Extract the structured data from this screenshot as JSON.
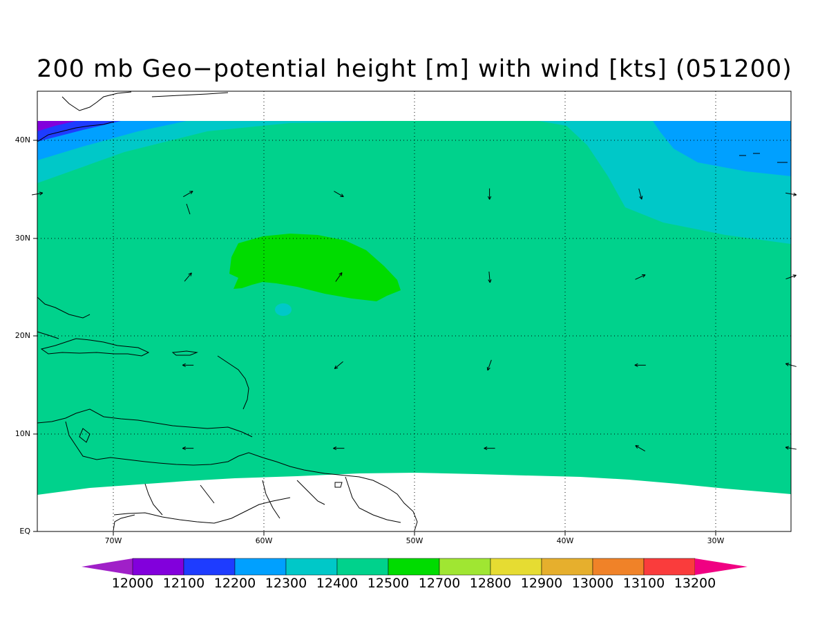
{
  "title": "200 mb Geo−potential height [m] with wind [kts] (051200)",
  "lat_labels": [
    "40N",
    "30N",
    "20N",
    "10N",
    "EQ"
  ],
  "lon_labels": [
    "70W",
    "60W",
    "50W",
    "40W",
    "30W"
  ],
  "colorbar": {
    "labels": [
      "12000",
      "12100",
      "12200",
      "12300",
      "12400",
      "12500",
      "12700",
      "12800",
      "12900",
      "13000",
      "13100",
      "13200"
    ],
    "colors": [
      "#a020c8",
      "#8200dc",
      "#1e3cff",
      "#00a0ff",
      "#00c8c8",
      "#00d28c",
      "#00dc00",
      "#a0e632",
      "#e6dc32",
      "#e6af2d",
      "#f08228",
      "#fa3c3c",
      "#f00082"
    ]
  },
  "map_colors": {
    "band_12100": "#1e3cff",
    "band_12200": "#00a0ff",
    "band_12300": "#00c8c8",
    "band_12400": "#00d28c",
    "band_12500": "#00dc00",
    "band_12000": "#8200dc"
  },
  "wind_vectors": [
    {
      "lon": -75,
      "lat": 34.5,
      "angle": -10
    },
    {
      "lon": -65,
      "lat": 34.5,
      "angle": -30
    },
    {
      "lon": -55,
      "lat": 34.5,
      "angle": 30
    },
    {
      "lon": -45,
      "lat": 34.5,
      "angle": 90
    },
    {
      "lon": -35,
      "lat": 34.5,
      "angle": 75
    },
    {
      "lon": -25,
      "lat": 34.5,
      "angle": 10
    },
    {
      "lon": -65,
      "lat": 26,
      "angle": -50
    },
    {
      "lon": -55,
      "lat": 26,
      "angle": -55
    },
    {
      "lon": -45,
      "lat": 26,
      "angle": 85
    },
    {
      "lon": -35,
      "lat": 26,
      "angle": -25
    },
    {
      "lon": -25,
      "lat": 26,
      "angle": -20
    },
    {
      "lon": -65,
      "lat": 17,
      "angle": 180
    },
    {
      "lon": -55,
      "lat": 17,
      "angle": 140
    },
    {
      "lon": -45,
      "lat": 17,
      "angle": 110
    },
    {
      "lon": -35,
      "lat": 17,
      "angle": 180
    },
    {
      "lon": -25,
      "lat": 17,
      "angle": 195
    },
    {
      "lon": -65,
      "lat": 8.5,
      "angle": 180
    },
    {
      "lon": -55,
      "lat": 8.5,
      "angle": 180
    },
    {
      "lon": -45,
      "lat": 8.5,
      "angle": 180
    },
    {
      "lon": -35,
      "lat": 8.5,
      "angle": 210
    },
    {
      "lon": -25,
      "lat": 8.5,
      "angle": 190
    }
  ]
}
